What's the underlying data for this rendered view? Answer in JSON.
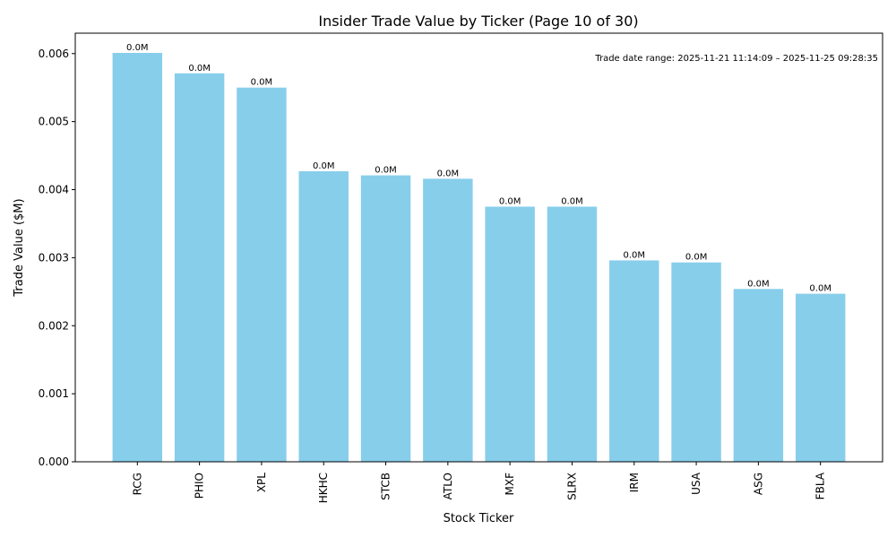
{
  "chart_data": {
    "type": "bar",
    "title": "Insider Trade Value by Ticker (Page 10 of 30)",
    "xlabel": "Stock Ticker",
    "ylabel": "Trade Value ($M)",
    "categories": [
      "RCG",
      "PHIO",
      "XPL",
      "HKHC",
      "STCB",
      "ATLO",
      "MXF",
      "SLRX",
      "IRM",
      "USA",
      "ASG",
      "FBLA"
    ],
    "values": [
      0.00601,
      0.00571,
      0.0055,
      0.00427,
      0.00421,
      0.00416,
      0.00375,
      0.00375,
      0.00296,
      0.00293,
      0.00254,
      0.00247
    ],
    "data_labels": [
      "0.0M",
      "0.0M",
      "0.0M",
      "0.0M",
      "0.0M",
      "0.0M",
      "0.0M",
      "0.0M",
      "0.0M",
      "0.0M",
      "0.0M",
      "0.0M"
    ],
    "ylim": [
      0,
      0.0063
    ],
    "yticks": [
      0.0,
      0.001,
      0.002,
      0.003,
      0.004,
      0.005,
      0.006
    ],
    "ytick_labels": [
      "0.000",
      "0.001",
      "0.002",
      "0.003",
      "0.004",
      "0.005",
      "0.006"
    ],
    "bar_color": "#87ceeb",
    "grid": false,
    "annotation": "Trade date range: 2025-11-21 11:14:09 – 2025-11-25 09:28:35"
  }
}
